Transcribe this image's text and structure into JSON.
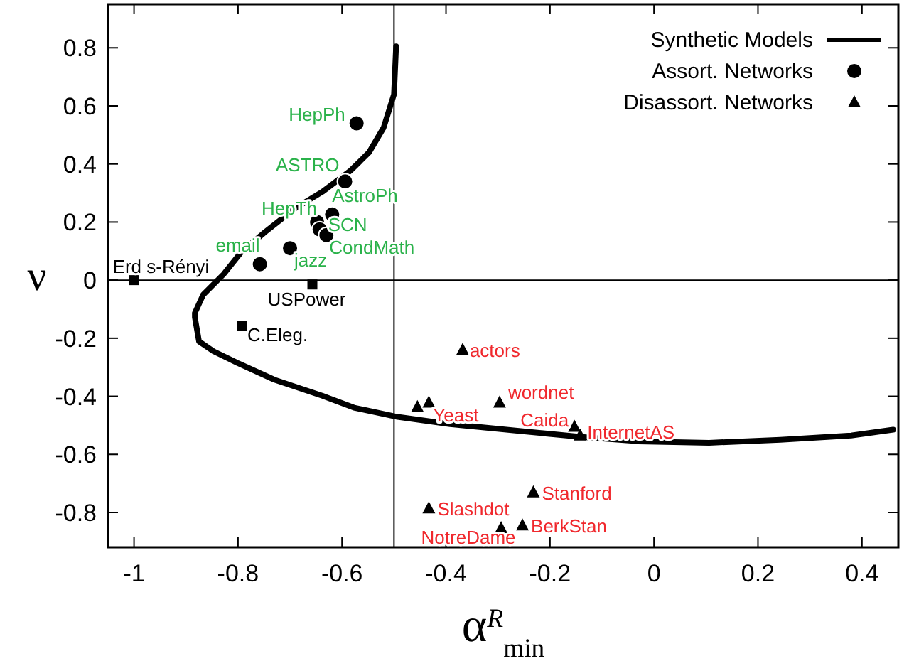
{
  "chart_data": {
    "type": "scatter",
    "xlabel": "α$^{R}$$_{min}$",
    "ylabel": "ν",
    "xlim": [
      -1.05,
      0.47
    ],
    "ylim": [
      -0.92,
      0.95
    ],
    "xticks": [
      -1,
      -0.8,
      -0.6,
      -0.4,
      -0.2,
      0,
      0.2,
      0.4
    ],
    "yticks": [
      -0.8,
      -0.6,
      -0.4,
      -0.2,
      0,
      0.2,
      0.4,
      0.6,
      0.8
    ],
    "grid": false,
    "legend": "top right",
    "ref_lines": [
      {
        "axis": "x",
        "value": -0.5
      },
      {
        "axis": "y",
        "value": 0
      }
    ],
    "series": [
      {
        "name": "Synthetic Models",
        "type": "line",
        "color": "#000000",
        "marker": "none",
        "x": [
          -0.496,
          -0.5,
          -0.52,
          -0.548,
          -0.583,
          -0.638,
          -0.692,
          -0.747,
          -0.793,
          -0.828,
          -0.867,
          -0.883,
          -0.883,
          -0.875,
          -0.847,
          -0.801,
          -0.73,
          -0.638,
          -0.575,
          -0.493,
          -0.392,
          -0.256,
          -0.139,
          -0.03,
          0.106,
          0.243,
          0.379,
          0.46
        ],
        "values": [
          0.805,
          0.64,
          0.525,
          0.44,
          0.378,
          0.304,
          0.245,
          0.167,
          0.098,
          0.02,
          -0.05,
          -0.113,
          -0.128,
          -0.211,
          -0.245,
          -0.285,
          -0.343,
          -0.398,
          -0.44,
          -0.471,
          -0.496,
          -0.52,
          -0.54,
          -0.555,
          -0.56,
          -0.55,
          -0.535,
          -0.515
        ]
      },
      {
        "name": "Assort. Networks",
        "color": "#000000",
        "marker": "circle",
        "x": [
          -0.572,
          -0.594,
          -0.619,
          -0.648,
          -0.643,
          -0.63,
          -0.7,
          -0.758
        ],
        "values": [
          0.54,
          0.34,
          0.226,
          0.2,
          0.175,
          0.155,
          0.11,
          0.055
        ]
      },
      {
        "name": "Disassort. Networks",
        "color": "#000000",
        "marker": "triangle",
        "x": [
          -0.368,
          -0.455,
          -0.433,
          -0.297,
          -0.153,
          -0.142,
          -0.232,
          -0.433,
          -0.294,
          -0.253
        ],
        "values": [
          -0.24,
          -0.437,
          -0.422,
          -0.422,
          -0.505,
          -0.535,
          -0.731,
          -0.786,
          -0.854,
          -0.845
        ]
      },
      {
        "color": "#000000",
        "marker": "square",
        "x": [
          -1.0,
          -0.657,
          -0.793
        ],
        "values": [
          0,
          -0.015,
          -0.157
        ]
      }
    ],
    "annotations": [
      {
        "text": "HepPh",
        "x": -0.572,
        "y": 0.54
      },
      {
        "text": "ASTRO",
        "x": -0.594,
        "y": 0.34
      },
      {
        "text": "AstroPh",
        "x": -0.619,
        "y": 0.226
      },
      {
        "text": "HepTh",
        "x": -0.648,
        "y": 0.2
      },
      {
        "text": "SCN",
        "x": -0.643,
        "y": 0.175
      },
      {
        "text": "CondMath",
        "x": -0.63,
        "y": 0.155
      },
      {
        "text": "jazz",
        "x": -0.7,
        "y": 0.11
      },
      {
        "text": "email",
        "x": -0.758,
        "y": 0.055
      },
      {
        "text": "Erd s-Rényi",
        "x": -1.0,
        "y": 0
      },
      {
        "text": "USPower",
        "x": -0.657,
        "y": -0.015
      },
      {
        "text": "C.Eleg.",
        "x": -0.793,
        "y": -0.157
      },
      {
        "text": "actors",
        "x": -0.368,
        "y": -0.24
      },
      {
        "text": "Yeast",
        "x": -0.433,
        "y": -0.422
      },
      {
        "text": "wordnet",
        "x": -0.297,
        "y": -0.422
      },
      {
        "text": "Caida",
        "x": -0.153,
        "y": -0.505
      },
      {
        "text": "InternetAS",
        "x": -0.142,
        "y": -0.535
      },
      {
        "text": "Stanford",
        "x": -0.232,
        "y": -0.731
      },
      {
        "text": "Slashdot",
        "x": -0.433,
        "y": -0.786
      },
      {
        "text": "NotreDame",
        "x": -0.294,
        "y": -0.854
      },
      {
        "text": "BerkStan",
        "x": -0.253,
        "y": -0.845
      }
    ]
  }
}
